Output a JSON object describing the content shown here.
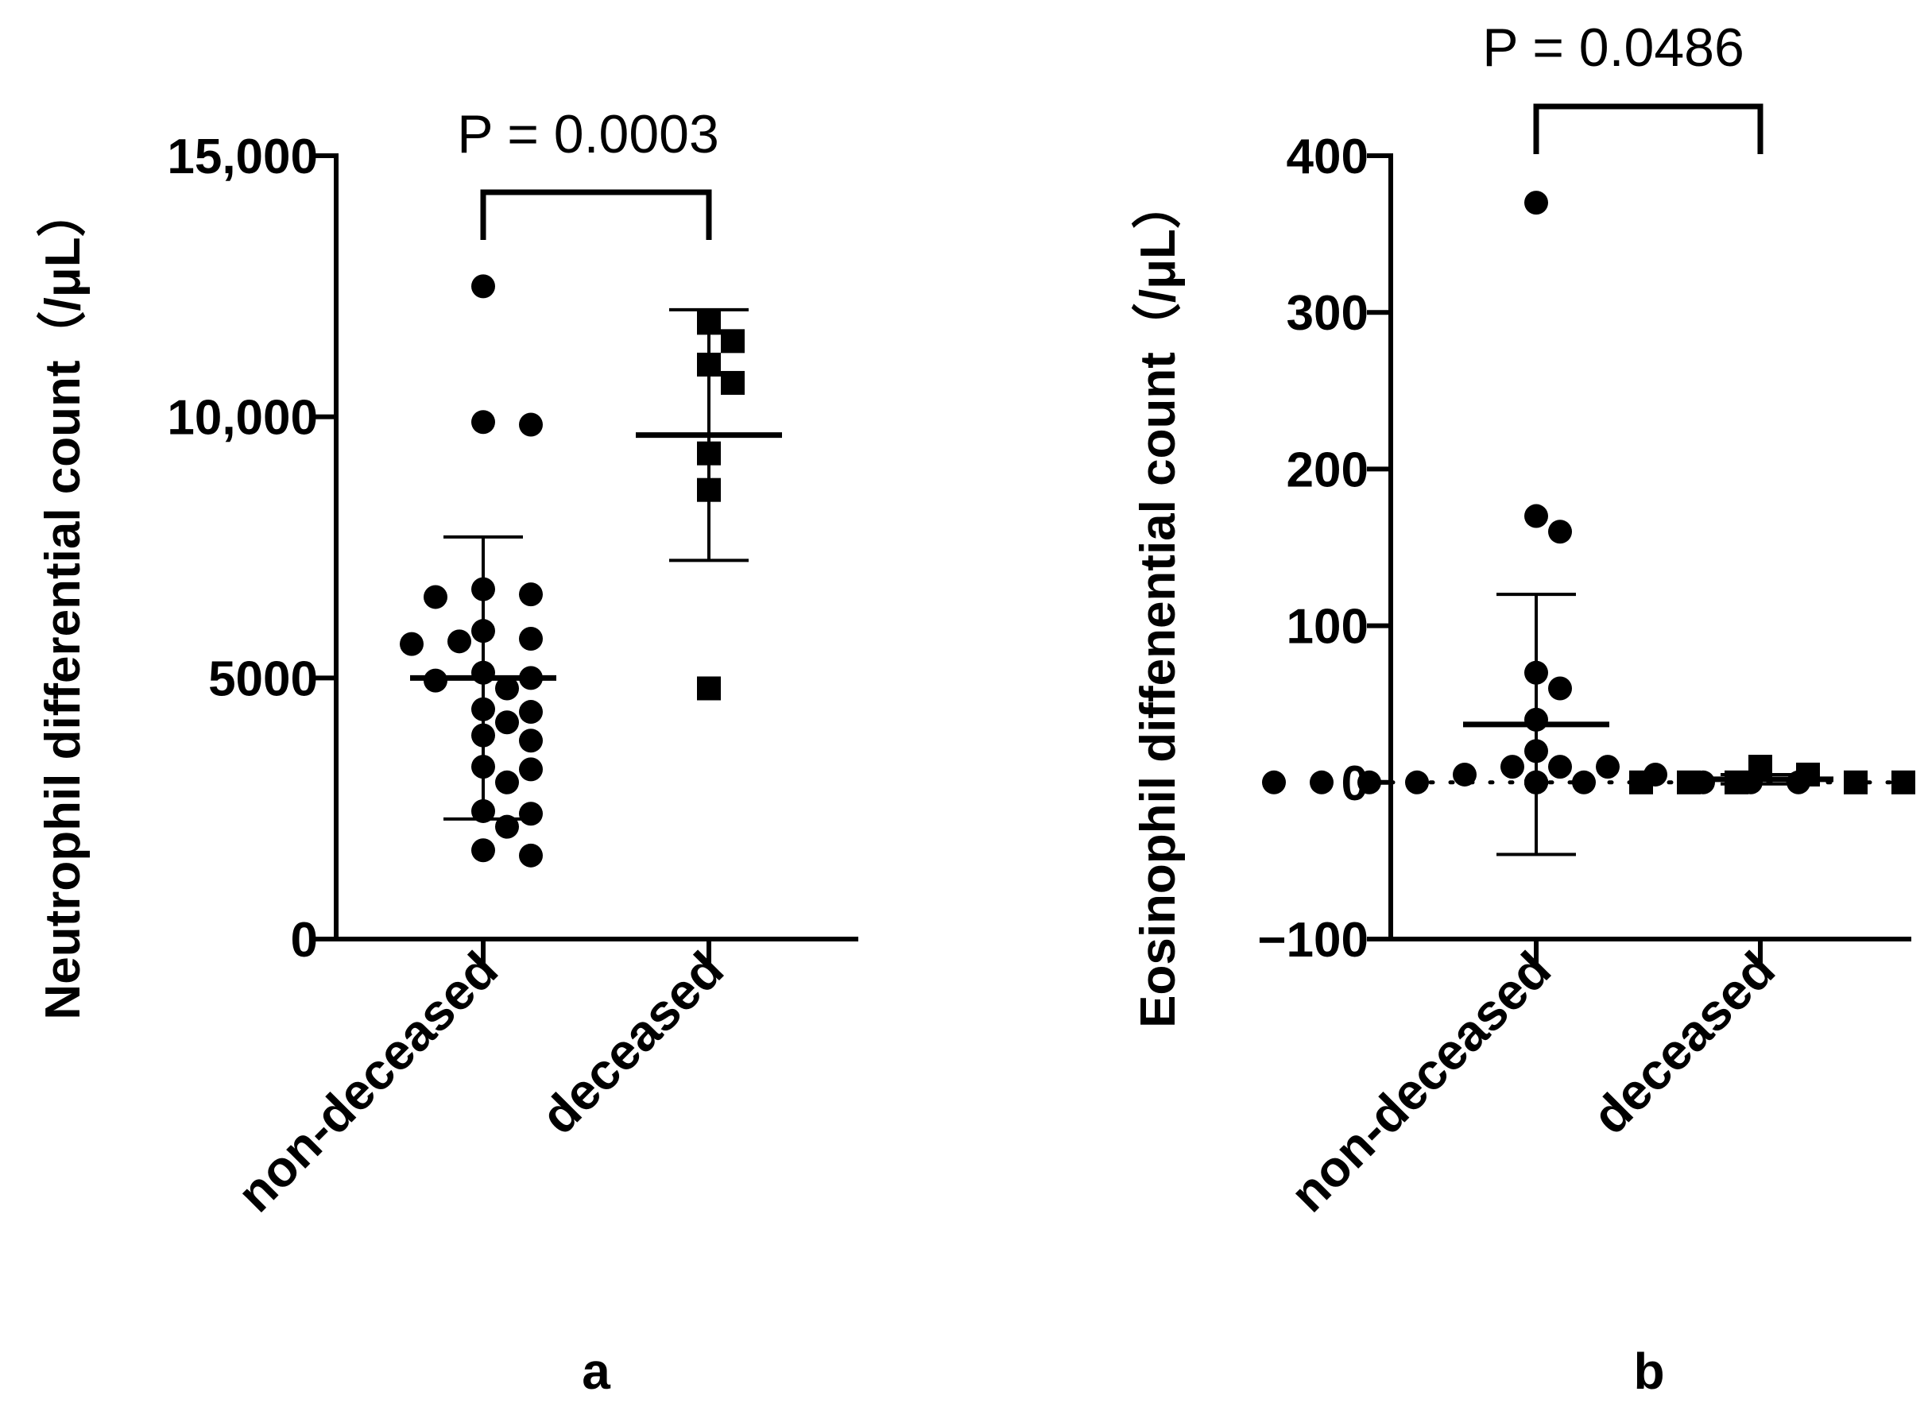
{
  "chart_data": [
    {
      "type": "scatter",
      "panel_label": "a",
      "ylabel": "Neutrophil differential count（/μL）",
      "categories": [
        "non-deceased",
        "deceased"
      ],
      "ylim": [
        0,
        15000
      ],
      "yticks": [
        0,
        5000,
        10000,
        15000
      ],
      "ytick_labels": [
        "0",
        "5000",
        "10,000",
        "15,000"
      ],
      "zero_reference_line": false,
      "series": [
        {
          "name": "non-deceased",
          "marker": "circle",
          "values": [
            12500,
            9900,
            9850,
            6600,
            6550,
            6700,
            5900,
            5700,
            5750,
            5650,
            5100,
            5000,
            4950,
            4800,
            4400,
            4350,
            4150,
            3900,
            3800,
            3300,
            3250,
            3000,
            2450,
            2400,
            2150,
            1700,
            1600
          ],
          "mean": 5000,
          "sd": 2700
        },
        {
          "name": "deceased",
          "marker": "square",
          "values": [
            11800,
            11450,
            11000,
            10650,
            9300,
            8600,
            4800
          ],
          "mean": 9650,
          "sd": 2400
        }
      ],
      "comparison": {
        "between": [
          "non-deceased",
          "deceased"
        ],
        "label": "P = 0.0003"
      }
    },
    {
      "type": "scatter",
      "panel_label": "b",
      "ylabel": "Eosinophil diffenential count（/μL）",
      "categories": [
        "non-deceased",
        "deceased"
      ],
      "ylim": [
        -100,
        400
      ],
      "yticks": [
        -100,
        0,
        100,
        200,
        300,
        400
      ],
      "ytick_labels": [
        "−100",
        "0",
        "100",
        "200",
        "300",
        "400"
      ],
      "zero_reference_line": true,
      "series": [
        {
          "name": "non-deceased",
          "marker": "circle",
          "values": [
            370,
            170,
            160,
            70,
            60,
            40,
            20,
            10,
            10,
            10,
            5,
            5,
            0,
            0,
            0,
            0,
            0,
            0,
            0,
            0,
            0,
            0,
            0,
            0,
            0,
            0,
            0
          ],
          "mean": 37,
          "sd": 83
        },
        {
          "name": "deceased",
          "marker": "square",
          "values": [
            10,
            5,
            0,
            0,
            0,
            0,
            0
          ],
          "mean": 2,
          "sd": 3
        }
      ],
      "comparison": {
        "between": [
          "non-deceased",
          "deceased"
        ],
        "label": "P = 0.0486"
      }
    }
  ]
}
